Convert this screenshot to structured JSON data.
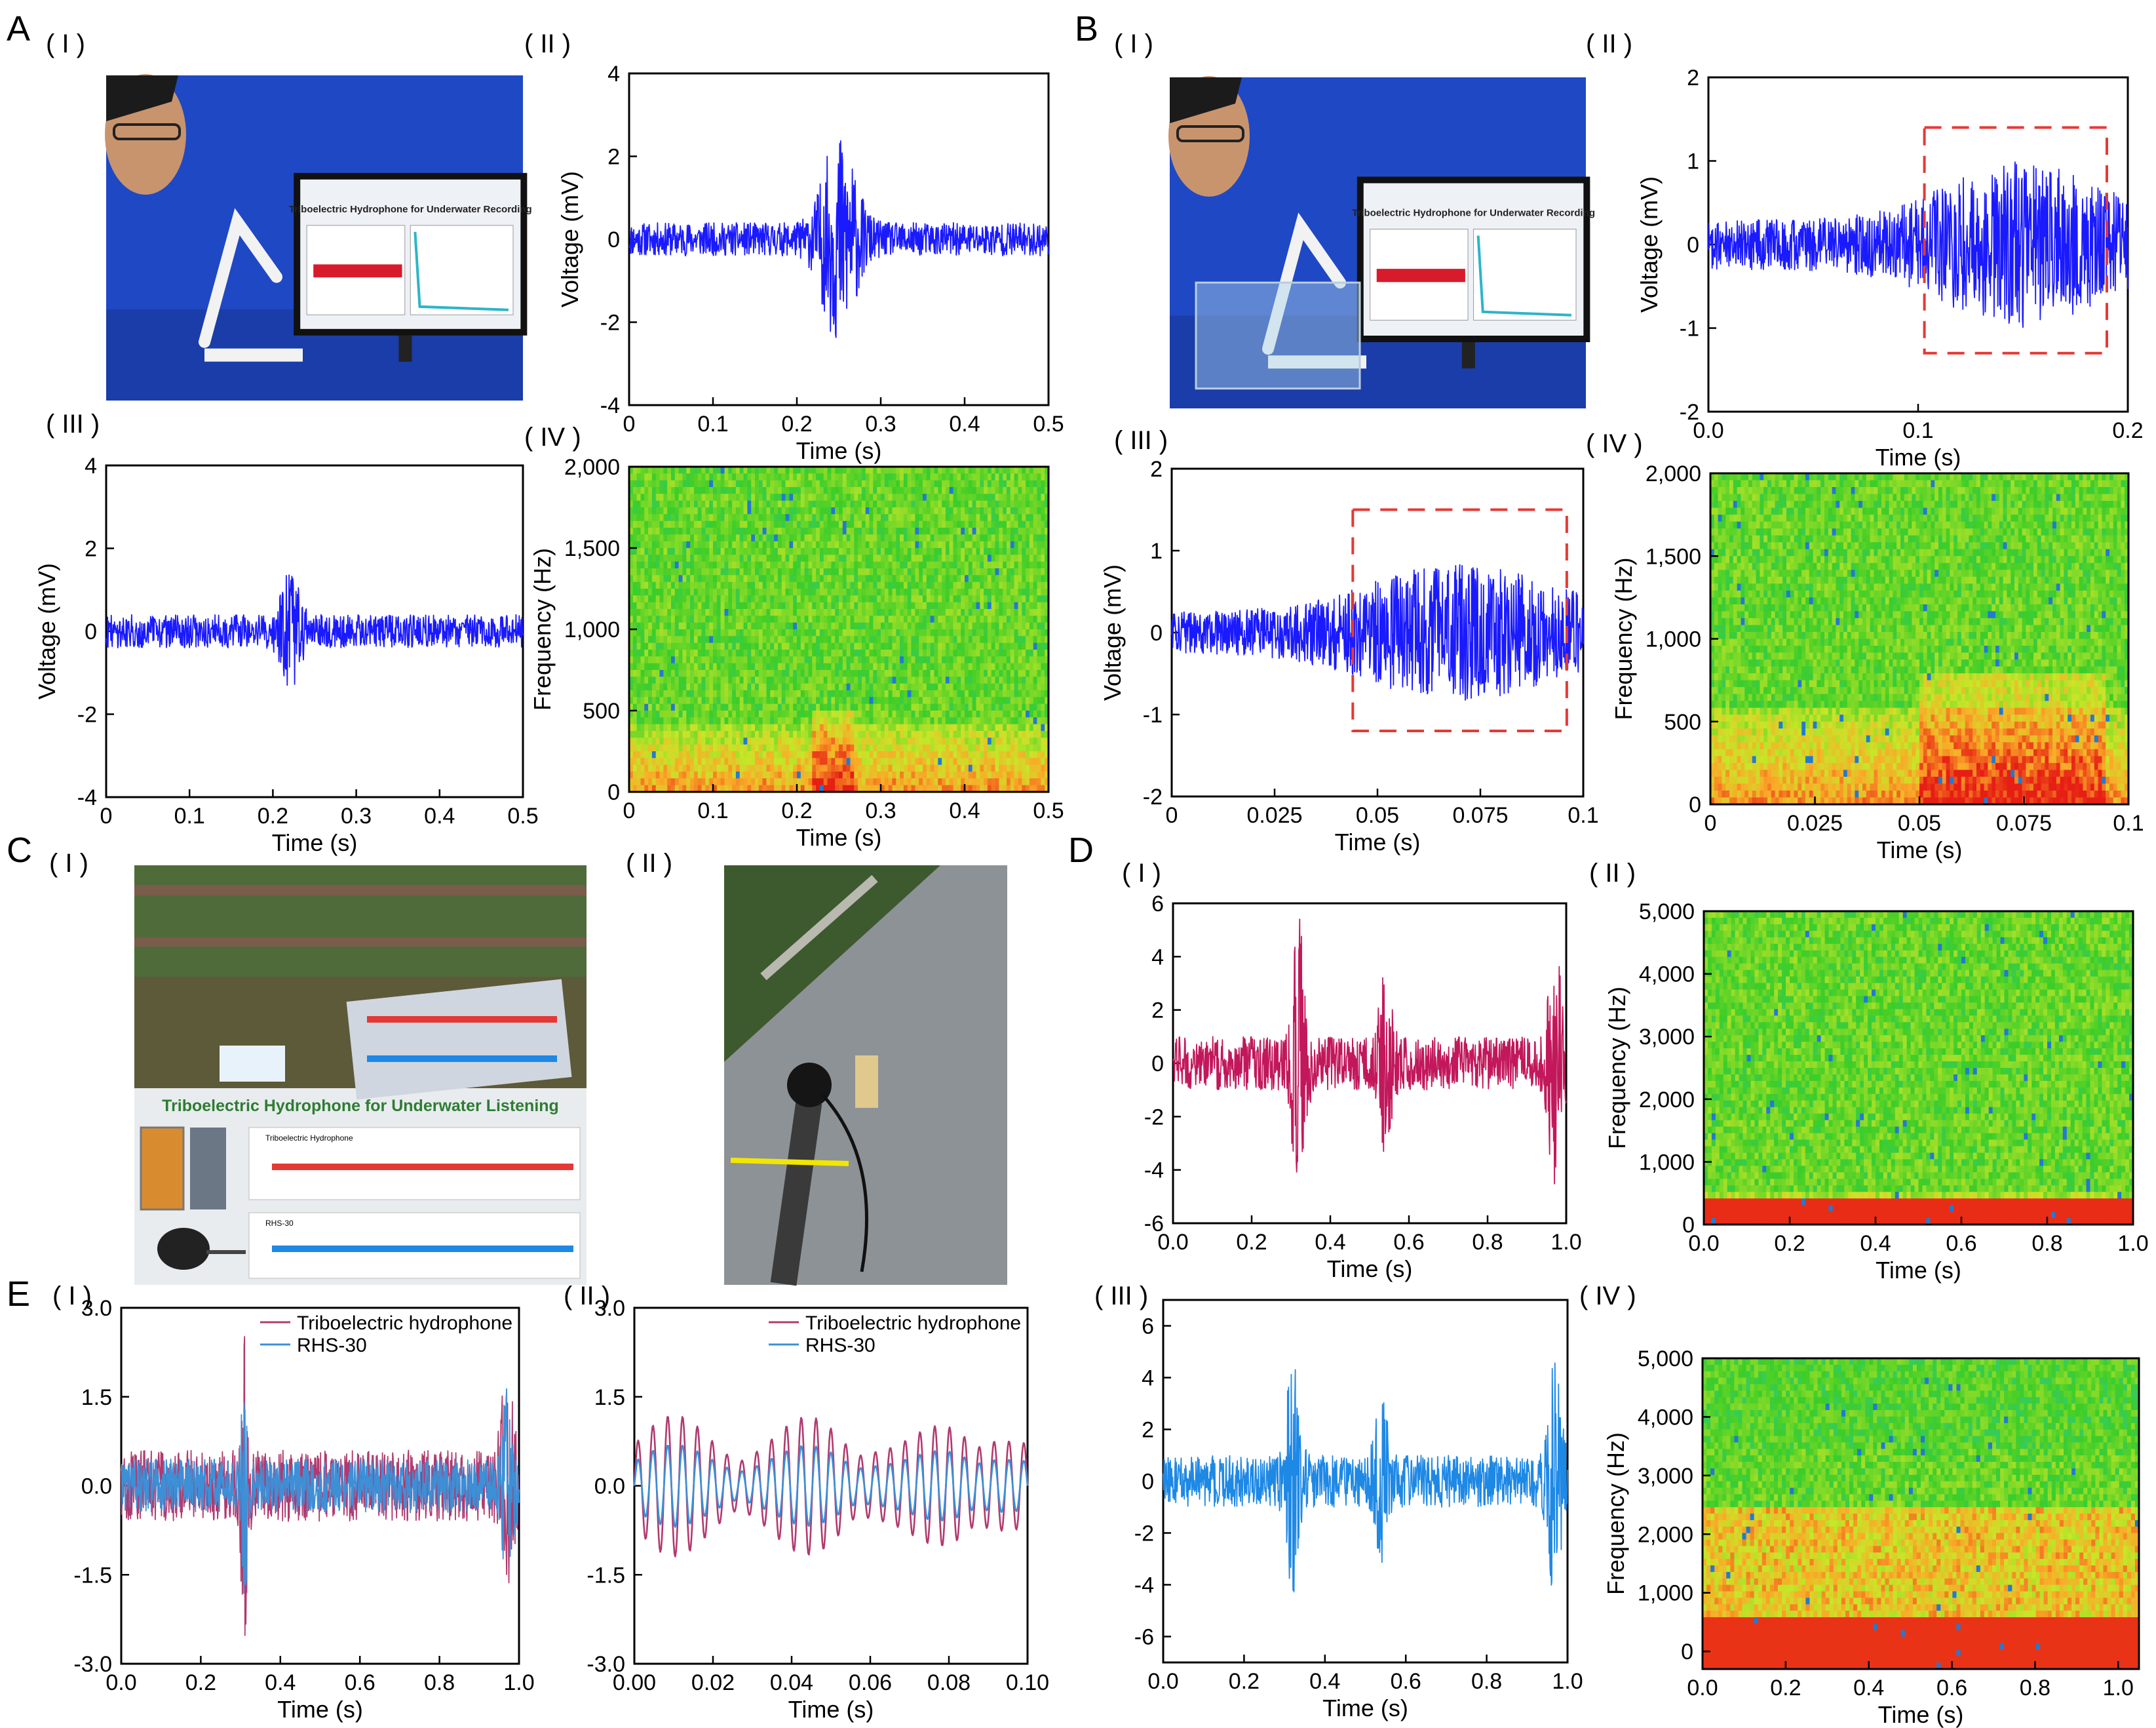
{
  "figure": {
    "panel_letters": [
      "A",
      "B",
      "C",
      "D",
      "E"
    ],
    "subpanel_numerals": [
      "( I )",
      "( II )",
      "( III )",
      "( IV )"
    ]
  },
  "photos": {
    "a1": {
      "screen_title": "Triboelectric Hydrophone for Underwater Recording"
    },
    "b1": {
      "screen_title": "Triboelectric Hydrophone for Underwater Recording"
    },
    "c1": {
      "banner": "Triboelectric Hydrophone for Underwater Listening",
      "plot1_label": "Triboelectric Hydrophone",
      "plot2_label": "RHS-30"
    },
    "c2": {}
  },
  "colors": {
    "blue": "#1a1aff",
    "magenta": "#c2185b",
    "lightblue": "#1e88e5",
    "triboelectric": "#b03a6f",
    "rhs": "#3d8fd6",
    "dash_red": "#e53935"
  },
  "chart_data": [
    {
      "id": "A-II",
      "type": "line",
      "xlabel": "Time (s)",
      "ylabel": "Voltage (mV)",
      "xlim": [
        0,
        0.5
      ],
      "ylim": [
        -4,
        4
      ],
      "xticks": [
        "0",
        "0.1",
        "0.2",
        "0.3",
        "0.4",
        "0.5"
      ],
      "yticks": [
        "-4",
        "-2",
        "0",
        "2",
        "4"
      ],
      "series": [
        {
          "color": "#1a1aff",
          "baseline_amp": 0.4,
          "bursts": [
            {
              "x": 0.25,
              "amp": 2.2,
              "width": 0.025
            }
          ]
        }
      ]
    },
    {
      "id": "A-III",
      "type": "line",
      "xlabel": "Time (s)",
      "ylabel": "Voltage (mV)",
      "xlim": [
        0,
        0.5
      ],
      "ylim": [
        -4,
        4
      ],
      "xticks": [
        "0",
        "0.1",
        "0.2",
        "0.3",
        "0.4",
        "0.5"
      ],
      "yticks": [
        "-4",
        "-2",
        "0",
        "2",
        "4"
      ],
      "series": [
        {
          "color": "#1a1aff",
          "baseline_amp": 0.4,
          "bursts": [
            {
              "x": 0.22,
              "amp": 1.1,
              "width": 0.015
            }
          ]
        }
      ]
    },
    {
      "id": "A-IV",
      "type": "heatmap",
      "xlabel": "Time (s)",
      "ylabel": "Frequency (Hz)",
      "xlim": [
        0,
        0.5
      ],
      "ylim": [
        0,
        2000
      ],
      "xticks": [
        "0",
        "0.1",
        "0.2",
        "0.3",
        "0.4",
        "0.5"
      ],
      "yticks": [
        "0",
        "500",
        "1,000",
        "1,500",
        "2,000"
      ],
      "hot_band_hz": 400,
      "hot_spot": [
        0.22,
        0.27
      ]
    },
    {
      "id": "B-II",
      "type": "line",
      "xlabel": "Time (s)",
      "ylabel": "Voltage (mV)",
      "xlim": [
        0,
        0.2
      ],
      "ylim": [
        -2,
        2
      ],
      "xticks": [
        "0.0",
        "0.1",
        "0.2"
      ],
      "yticks": [
        "-2",
        "-1",
        "0",
        "1",
        "2"
      ],
      "series": [
        {
          "color": "#1a1aff",
          "baseline_amp": 0.3,
          "bursts": [
            {
              "x": 0.15,
              "amp": 0.7,
              "width": 0.05
            }
          ]
        }
      ],
      "highlight_box": {
        "x": [
          0.103,
          0.19
        ],
        "y": [
          -1.3,
          1.4
        ]
      }
    },
    {
      "id": "B-III",
      "type": "line",
      "xlabel": "Time (s)",
      "ylabel": "Voltage (mV)",
      "xlim": [
        0,
        0.1
      ],
      "ylim": [
        -2,
        2
      ],
      "xticks": [
        "0",
        "0.025",
        "0.05",
        "0.075",
        "0.1"
      ],
      "yticks": [
        "-2",
        "-1",
        "0",
        "1",
        "2"
      ],
      "series": [
        {
          "color": "#1a1aff",
          "baseline_amp": 0.25,
          "bursts": [
            {
              "x": 0.07,
              "amp": 0.6,
              "width": 0.03
            }
          ]
        }
      ],
      "highlight_box": {
        "x": [
          0.044,
          0.096
        ],
        "y": [
          -1.2,
          1.5
        ]
      }
    },
    {
      "id": "B-IV",
      "type": "heatmap",
      "xlabel": "Time (s)",
      "ylabel": "Frequency (Hz)",
      "xlim": [
        0,
        0.1
      ],
      "ylim": [
        0,
        2000
      ],
      "xticks": [
        "0",
        "0.025",
        "0.05",
        "0.075",
        "0.1"
      ],
      "yticks": [
        "0",
        "500",
        "1,000",
        "1,500",
        "2,000"
      ],
      "hot_band_hz": 600,
      "hot_spot": [
        0.05,
        0.095
      ]
    },
    {
      "id": "D-I",
      "type": "line",
      "xlabel": "Time (s)",
      "ylabel": "",
      "xlim": [
        0,
        1.0
      ],
      "ylim": [
        -6,
        6
      ],
      "xticks": [
        "0.0",
        "0.2",
        "0.4",
        "0.6",
        "0.8",
        "1.0"
      ],
      "yticks": [
        "-6",
        "-4",
        "-2",
        "0",
        "2",
        "4",
        "6"
      ],
      "series": [
        {
          "color": "#c2185b",
          "baseline_amp": 1.0,
          "bursts": [
            {
              "x": 0.32,
              "amp": 4.5,
              "width": 0.02
            },
            {
              "x": 0.54,
              "amp": 2.5,
              "width": 0.02
            },
            {
              "x": 0.97,
              "amp": 4.0,
              "width": 0.02
            }
          ]
        }
      ]
    },
    {
      "id": "D-II",
      "type": "heatmap",
      "xlabel": "Time (s)",
      "ylabel": "Frequency (Hz)",
      "xlim": [
        0,
        1.0
      ],
      "ylim": [
        0,
        5000
      ],
      "xticks": [
        "0.0",
        "0.2",
        "0.4",
        "0.6",
        "0.8",
        "1.0"
      ],
      "yticks": [
        "0",
        "1,000",
        "2,000",
        "3,000",
        "4,000",
        "5,000"
      ],
      "hot_band_hz": 500,
      "hot_spot": [
        0,
        0
      ]
    },
    {
      "id": "D-III",
      "type": "line",
      "xlabel": "Time (s)",
      "ylabel": "",
      "xlim": [
        0,
        1.0
      ],
      "ylim": [
        -7,
        7
      ],
      "xticks": [
        "0.0",
        "0.2",
        "0.4",
        "0.6",
        "0.8",
        "1.0"
      ],
      "yticks": [
        "-6",
        "-4",
        "-2",
        "0",
        "2",
        "4",
        "6"
      ],
      "series": [
        {
          "color": "#1e88e5",
          "baseline_amp": 1.0,
          "bursts": [
            {
              "x": 0.32,
              "amp": 3.8,
              "width": 0.02
            },
            {
              "x": 0.54,
              "amp": 2.2,
              "width": 0.02
            },
            {
              "x": 0.97,
              "amp": 4.0,
              "width": 0.02
            }
          ]
        }
      ]
    },
    {
      "id": "D-IV",
      "type": "heatmap",
      "xlabel": "Time (s)",
      "ylabel": "Frequency (Hz)",
      "xlim": [
        0,
        1.05
      ],
      "ylim": [
        -300,
        5000
      ],
      "xticks": [
        "0.0",
        "0.2",
        "0.4",
        "0.6",
        "0.8",
        "1.0"
      ],
      "yticks": [
        "0",
        "1,000",
        "2,000",
        "3,000",
        "4,000",
        "5,000"
      ],
      "hot_band_hz": 2500,
      "hot_spot": [
        0,
        0
      ]
    },
    {
      "id": "E-I",
      "type": "line",
      "xlabel": "Time (s)",
      "ylabel": "",
      "xlim": [
        0,
        1.0
      ],
      "ylim": [
        -3.0,
        3.0
      ],
      "xticks": [
        "0.0",
        "0.2",
        "0.4",
        "0.6",
        "0.8",
        "1.0"
      ],
      "yticks": [
        "-3.0",
        "-1.5",
        "0.0",
        "1.5",
        "3.0"
      ],
      "legend": [
        "Triboelectric hydrophone",
        "RHS-30"
      ],
      "series": [
        {
          "name": "Triboelectric hydrophone",
          "color": "#b03a6f",
          "baseline_amp": 0.6,
          "bursts": [
            {
              "x": 0.31,
              "amp": 2.3,
              "width": 0.01
            },
            {
              "x": 0.97,
              "amp": 1.4,
              "width": 0.02
            }
          ]
        },
        {
          "name": "RHS-30",
          "color": "#3d8fd6",
          "baseline_amp": 0.45,
          "bursts": [
            {
              "x": 0.31,
              "amp": 1.6,
              "width": 0.01
            },
            {
              "x": 0.97,
              "amp": 1.2,
              "width": 0.02
            }
          ]
        }
      ]
    },
    {
      "id": "E-II",
      "type": "line",
      "xlabel": "Time (s)",
      "ylabel": "",
      "xlim": [
        0,
        0.1
      ],
      "ylim": [
        -3.0,
        3.0
      ],
      "xticks": [
        "0.00",
        "0.02",
        "0.04",
        "0.06",
        "0.08",
        "0.10"
      ],
      "yticks": [
        "-3.0",
        "-1.5",
        "0.0",
        "1.5",
        "3.0"
      ],
      "legend": [
        "Triboelectric hydrophone",
        "RHS-30"
      ],
      "series": [
        {
          "name": "Triboelectric hydrophone",
          "color": "#b03a6f",
          "smooth": true,
          "amp": 1.2
        },
        {
          "name": "RHS-30",
          "color": "#3d8fd6",
          "smooth": true,
          "amp": 0.7
        }
      ]
    }
  ]
}
